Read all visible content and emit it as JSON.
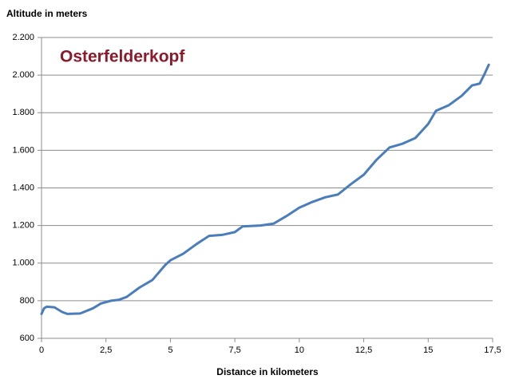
{
  "chart_data": {
    "type": "line",
    "title": "Osterfelderkopf",
    "y_label": "Altitude in meters",
    "x_label": "Distance in kilometers",
    "x": [
      0,
      0.1,
      0.2,
      0.5,
      0.8,
      1.0,
      1.5,
      2.0,
      2.3,
      2.7,
      3.0,
      3.3,
      3.8,
      4.3,
      4.8,
      5.0,
      5.5,
      6.0,
      6.5,
      7.0,
      7.5,
      7.8,
      8.5,
      9.0,
      9.5,
      10.0,
      10.5,
      11.0,
      11.5,
      12.0,
      12.5,
      13.0,
      13.5,
      14.0,
      14.5,
      15.0,
      15.3,
      15.8,
      16.3,
      16.7,
      17.0,
      17.2,
      17.35
    ],
    "values": [
      730,
      760,
      768,
      765,
      740,
      730,
      732,
      760,
      785,
      800,
      805,
      820,
      870,
      910,
      990,
      1015,
      1050,
      1100,
      1145,
      1150,
      1165,
      1195,
      1200,
      1210,
      1250,
      1295,
      1325,
      1350,
      1365,
      1420,
      1470,
      1550,
      1615,
      1635,
      1665,
      1740,
      1810,
      1840,
      1890,
      1945,
      1955,
      2010,
      2055
    ],
    "color": "#4a7dbb",
    "xlim": [
      0,
      17.5
    ],
    "xticks": [
      0,
      {
        "value": 2.5,
        "label": "2,5"
      },
      5,
      {
        "value": 7.5,
        "label": "7,5"
      },
      10,
      {
        "value": 12.5,
        "label": "12,5"
      },
      15,
      {
        "value": 17.5,
        "label": "17,5"
      }
    ],
    "ylim": [
      600,
      2200
    ],
    "yticks": [
      {
        "value": 600,
        "label": "600"
      },
      {
        "value": 800,
        "label": "800"
      },
      {
        "value": 1000,
        "label": "1.000"
      },
      {
        "value": 1200,
        "label": "1.200"
      },
      {
        "value": 1400,
        "label": "1.400"
      },
      {
        "value": 1600,
        "label": "1.600"
      },
      {
        "value": 1800,
        "label": "1.800"
      },
      {
        "value": 2000,
        "label": "2.000"
      },
      {
        "value": 2200,
        "label": "2.200"
      }
    ],
    "grid": true
  }
}
